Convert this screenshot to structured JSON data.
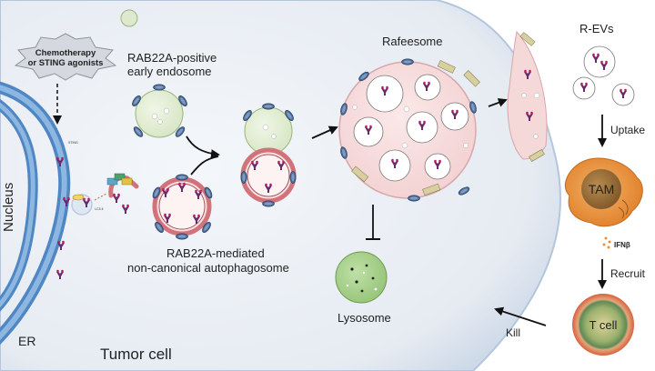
{
  "labels": {
    "chemo_l1": "Chemotherapy",
    "chemo_l2": "or STING agonists",
    "nucleus": "Nucleus",
    "er": "ER",
    "sting": "STING",
    "lc3": "LC3-II",
    "early_l1": "RAB22A-positive",
    "early_l2": "early endosome",
    "auto_l1": "RAB22A-mediated",
    "auto_l2": "non-canonical autophagosome",
    "rafeesome": "Rafeesome",
    "lysosome": "Lysosome",
    "tumor_cell": "Tumor cell",
    "revs": "R-EVs",
    "uptake": "Uptake",
    "tam": "TAM",
    "ifnb": "IFNβ",
    "recruit": "Recruit",
    "tcell": "T cell",
    "kill": "Kill",
    "rab": "RAB22A"
  },
  "colors": {
    "cytoplasm": "#e7ecf3",
    "membrane": "#b3c6dd",
    "er": "#4f87c4",
    "early_endosome": "#dde9cf",
    "autophagosome_ring": "#d2737c",
    "rafeesome": "#f5d9d9",
    "sting": "#6b2a6e",
    "rab22a": "#4a6a96",
    "tam": "#e8923a",
    "tcell_outer": "#d9603c",
    "tcell_inner": "#8ea86a",
    "lysosome": "#a8d08d"
  }
}
